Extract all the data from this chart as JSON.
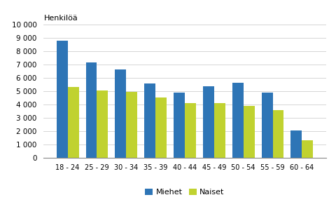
{
  "categories": [
    "18 - 24",
    "25 - 29",
    "30 - 34",
    "35 - 39",
    "40 - 44",
    "45 - 49",
    "50 - 54",
    "55 - 59",
    "60 - 64"
  ],
  "miehet": [
    8750,
    7150,
    6600,
    5550,
    4850,
    5350,
    5600,
    4900,
    2050
  ],
  "naiset": [
    5300,
    5050,
    4950,
    4480,
    4100,
    4100,
    3850,
    3550,
    1300
  ],
  "color_miehet": "#2e75b6",
  "color_naiset": "#c0d230",
  "ylabel": "Henkilöä",
  "ylim": [
    0,
    10000
  ],
  "yticks": [
    0,
    1000,
    2000,
    3000,
    4000,
    5000,
    6000,
    7000,
    8000,
    9000,
    10000
  ],
  "legend_miehet": "Miehet",
  "legend_naiset": "Naiset",
  "background_color": "#ffffff",
  "grid_color": "#d0d0d0"
}
